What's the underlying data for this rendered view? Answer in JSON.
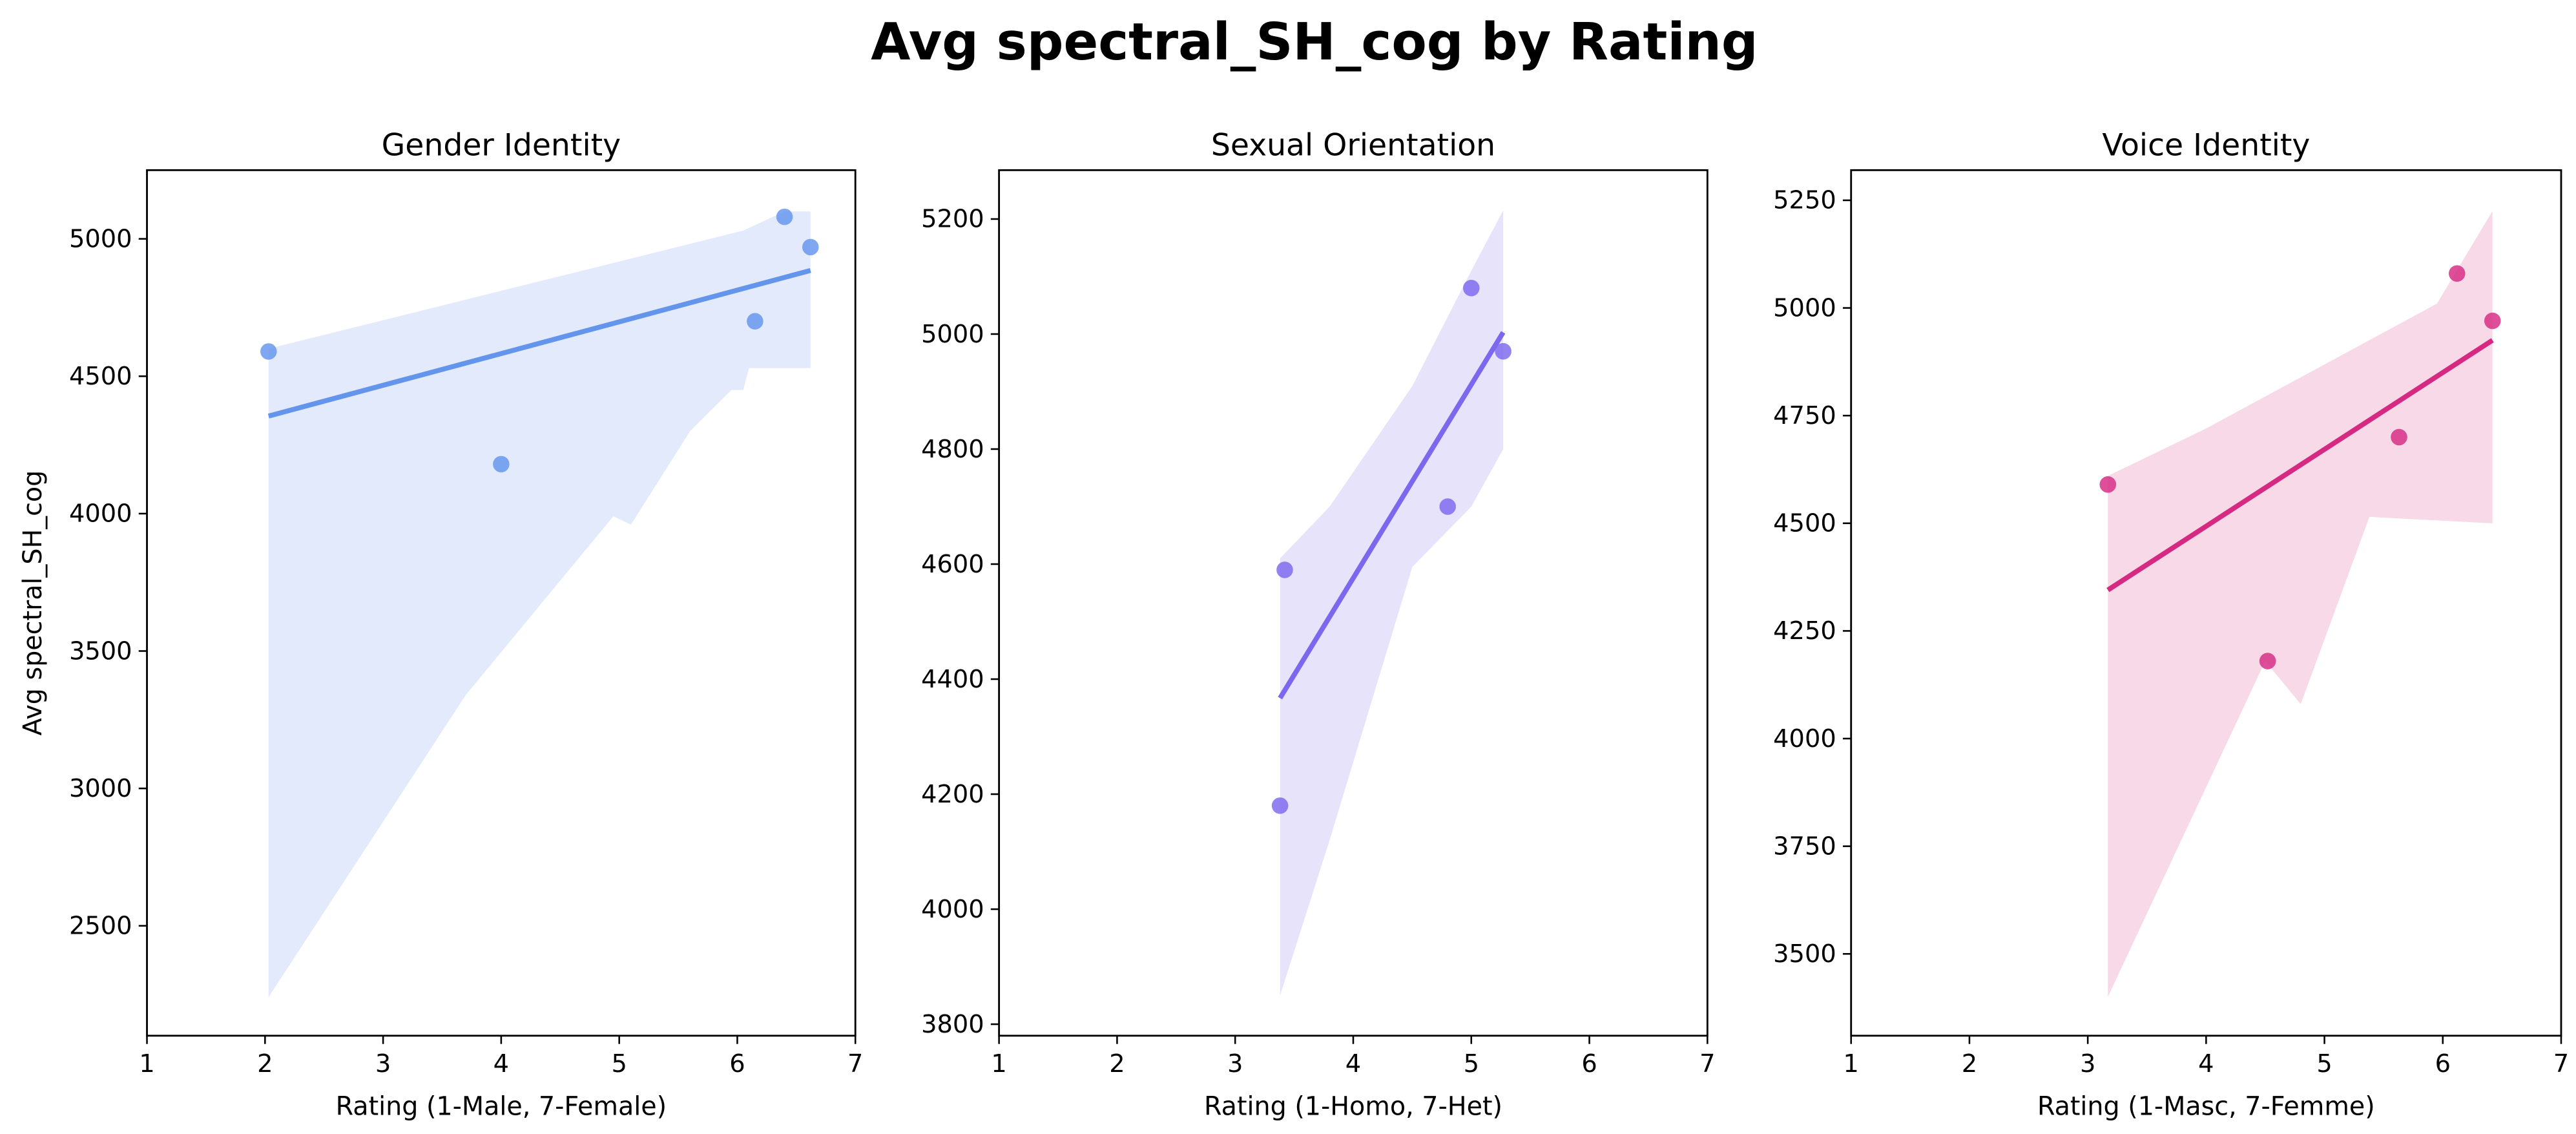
{
  "figure": {
    "title": "Avg spectral_SH_cog by Rating"
  },
  "chart_data": [
    {
      "type": "scatter",
      "title": "Gender Identity",
      "xlabel": "Rating (1-Male, 7-Female)",
      "ylabel": "Avg spectral_SH_cog",
      "xlim": [
        1,
        7
      ],
      "ylim": [
        2100,
        5250
      ],
      "xticks": [
        1,
        2,
        3,
        4,
        5,
        6,
        7
      ],
      "yticks": [
        2500,
        3000,
        3500,
        4000,
        4500,
        5000
      ],
      "color": "#6495ED",
      "fill_color": "#E3EAFC",
      "points": [
        {
          "x": 2.03,
          "y": 4590
        },
        {
          "x": 4.0,
          "y": 4180
        },
        {
          "x": 6.15,
          "y": 4700
        },
        {
          "x": 6.4,
          "y": 5080
        },
        {
          "x": 6.62,
          "y": 4970
        }
      ],
      "regression": {
        "x": [
          2.03,
          6.62
        ],
        "y": [
          4355,
          4885
        ]
      },
      "ci_band": {
        "upper": [
          [
            2.03,
            4600
          ],
          [
            6.05,
            5030
          ],
          [
            6.4,
            5100
          ],
          [
            6.62,
            5100
          ]
        ],
        "lower": [
          [
            6.62,
            4530
          ],
          [
            6.1,
            4530
          ],
          [
            6.05,
            4450
          ],
          [
            5.95,
            4450
          ],
          [
            5.6,
            4300
          ],
          [
            5.1,
            3960
          ],
          [
            4.95,
            3990
          ],
          [
            3.7,
            3340
          ],
          [
            2.03,
            2240
          ]
        ]
      }
    },
    {
      "type": "scatter",
      "title": "Sexual Orientation",
      "xlabel": "Rating (1-Homo, 7-Het)",
      "ylabel": "",
      "xlim": [
        1,
        7
      ],
      "ylim": [
        3780,
        5285
      ],
      "xticks": [
        1,
        2,
        3,
        4,
        5,
        6,
        7
      ],
      "yticks": [
        3800,
        4000,
        4200,
        4400,
        4600,
        4800,
        5000,
        5200
      ],
      "color": "#7B68EE",
      "fill_color": "#E6E3FB",
      "points": [
        {
          "x": 3.38,
          "y": 4180
        },
        {
          "x": 3.42,
          "y": 4590
        },
        {
          "x": 4.8,
          "y": 4700
        },
        {
          "x": 5.0,
          "y": 5080
        },
        {
          "x": 5.27,
          "y": 4970
        }
      ],
      "regression": {
        "x": [
          3.38,
          5.27
        ],
        "y": [
          4367,
          5003
        ]
      },
      "ci_band": {
        "upper": [
          [
            3.38,
            4610
          ],
          [
            3.8,
            4700
          ],
          [
            4.5,
            4910
          ],
          [
            5.0,
            5110
          ],
          [
            5.27,
            5215
          ]
        ],
        "lower": [
          [
            5.27,
            4800
          ],
          [
            5.0,
            4700
          ],
          [
            4.5,
            4595
          ],
          [
            3.8,
            4120
          ],
          [
            3.38,
            3850
          ]
        ]
      }
    },
    {
      "type": "scatter",
      "title": "Voice Identity",
      "xlabel": "Rating (1-Masc, 7-Femme)",
      "ylabel": "",
      "xlim": [
        1,
        7
      ],
      "ylim": [
        3310,
        5320
      ],
      "xticks": [
        1,
        2,
        3,
        4,
        5,
        6,
        7
      ],
      "yticks": [
        3500,
        3750,
        4000,
        4250,
        4500,
        4750,
        5000,
        5250
      ],
      "color": "#D62A82",
      "fill_color": "#F7D9E8",
      "points": [
        {
          "x": 3.17,
          "y": 4590
        },
        {
          "x": 4.52,
          "y": 4180
        },
        {
          "x": 5.63,
          "y": 4700
        },
        {
          "x": 6.12,
          "y": 5080
        },
        {
          "x": 6.42,
          "y": 4970
        }
      ],
      "regression": {
        "x": [
          3.17,
          6.42
        ],
        "y": [
          4345,
          4925
        ]
      },
      "ci_band": {
        "upper": [
          [
            3.17,
            4610
          ],
          [
            4.0,
            4720
          ],
          [
            5.95,
            5010
          ],
          [
            6.42,
            5225
          ]
        ],
        "lower": [
          [
            6.42,
            4500
          ],
          [
            5.38,
            4515
          ],
          [
            4.8,
            4080
          ],
          [
            4.5,
            4180
          ],
          [
            3.17,
            3400
          ]
        ]
      }
    }
  ]
}
